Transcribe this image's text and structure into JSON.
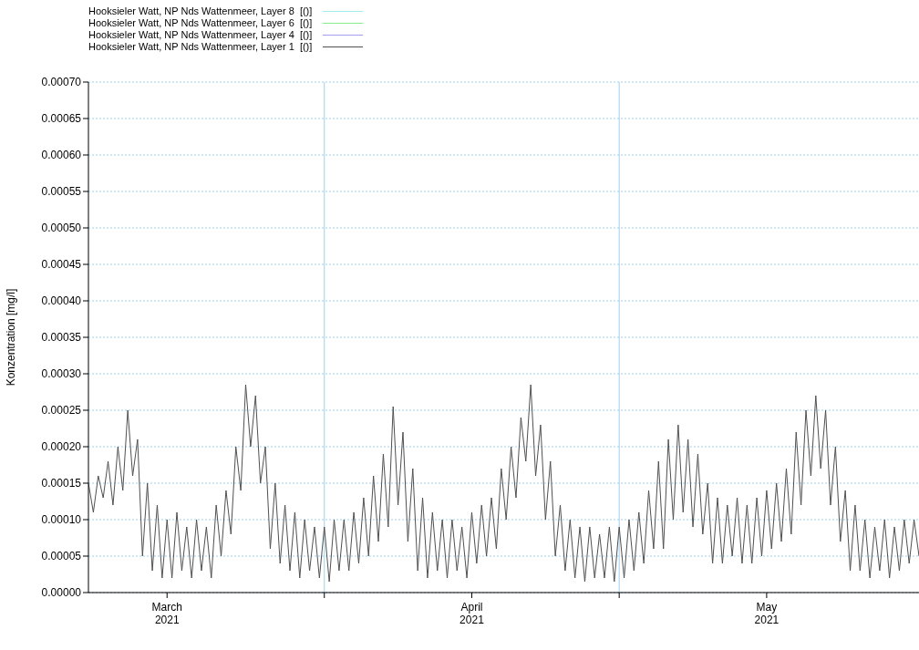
{
  "chart_data": {
    "type": "line",
    "ylabel": "Konzentration [mg/l]",
    "legend": "top left",
    "grid": true,
    "marker": "none",
    "xlim": [
      "2021-03-08",
      "2021-05-31T12:00"
    ],
    "xticks": [
      {
        "value": "2021-03-16",
        "label": "March\n2021"
      },
      {
        "value": "2021-04-01",
        "label": null
      },
      {
        "value": "2021-04-16",
        "label": "April\n2021"
      },
      {
        "value": "2021-05-01",
        "label": null
      },
      {
        "value": "2021-05-16",
        "label": "May\n2021"
      }
    ],
    "ylim": [
      0,
      0.0007
    ],
    "yticks": [
      {
        "value": 0,
        "label": "0.00000"
      },
      {
        "value": 5e-05,
        "label": "0.00005"
      },
      {
        "value": 0.0001,
        "label": "0.00010"
      },
      {
        "value": 0.00015,
        "label": "0.00015"
      },
      {
        "value": 0.0002,
        "label": "0.00020"
      },
      {
        "value": 0.00025,
        "label": "0.00025"
      },
      {
        "value": 0.0003,
        "label": "0.00030"
      },
      {
        "value": 0.00035,
        "label": "0.00035"
      },
      {
        "value": 0.0004,
        "label": "0.00040"
      },
      {
        "value": 0.00045,
        "label": "0.00045"
      },
      {
        "value": 0.0005,
        "label": "0.00050"
      },
      {
        "value": 0.00055,
        "label": "0.00055"
      },
      {
        "value": 0.0006,
        "label": "0.00060"
      },
      {
        "value": 0.00065,
        "label": "0.00065"
      },
      {
        "value": 0.0007,
        "label": "0.00070"
      }
    ],
    "x": [
      "2021-03-08T00:00",
      "2021-03-08T12:00",
      "2021-03-09T00:00",
      "2021-03-09T12:00",
      "2021-03-10T00:00",
      "2021-03-10T12:00",
      "2021-03-11T00:00",
      "2021-03-11T12:00",
      "2021-03-12T00:00",
      "2021-03-12T12:00",
      "2021-03-13T00:00",
      "2021-03-13T12:00",
      "2021-03-14T00:00",
      "2021-03-14T12:00",
      "2021-03-15T00:00",
      "2021-03-15T12:00",
      "2021-03-16T00:00",
      "2021-03-16T12:00",
      "2021-03-17T00:00",
      "2021-03-17T12:00",
      "2021-03-18T00:00",
      "2021-03-18T12:00",
      "2021-03-19T00:00",
      "2021-03-19T12:00",
      "2021-03-20T00:00",
      "2021-03-20T12:00",
      "2021-03-21T00:00",
      "2021-03-21T12:00",
      "2021-03-22T00:00",
      "2021-03-22T12:00",
      "2021-03-23T00:00",
      "2021-03-23T12:00",
      "2021-03-24T00:00",
      "2021-03-24T12:00",
      "2021-03-25T00:00",
      "2021-03-25T12:00",
      "2021-03-26T00:00",
      "2021-03-26T12:00",
      "2021-03-27T00:00",
      "2021-03-27T12:00",
      "2021-03-28T00:00",
      "2021-03-28T12:00",
      "2021-03-29T00:00",
      "2021-03-29T12:00",
      "2021-03-30T00:00",
      "2021-03-30T12:00",
      "2021-03-31T00:00",
      "2021-03-31T12:00",
      "2021-04-01T00:00",
      "2021-04-01T12:00",
      "2021-04-02T00:00",
      "2021-04-02T12:00",
      "2021-04-03T00:00",
      "2021-04-03T12:00",
      "2021-04-04T00:00",
      "2021-04-04T12:00",
      "2021-04-05T00:00",
      "2021-04-05T12:00",
      "2021-04-06T00:00",
      "2021-04-06T12:00",
      "2021-04-07T00:00",
      "2021-04-07T12:00",
      "2021-04-08T00:00",
      "2021-04-08T12:00",
      "2021-04-09T00:00",
      "2021-04-09T12:00",
      "2021-04-10T00:00",
      "2021-04-10T12:00",
      "2021-04-11T00:00",
      "2021-04-11T12:00",
      "2021-04-12T00:00",
      "2021-04-12T12:00",
      "2021-04-13T00:00",
      "2021-04-13T12:00",
      "2021-04-14T00:00",
      "2021-04-14T12:00",
      "2021-04-15T00:00",
      "2021-04-15T12:00",
      "2021-04-16T00:00",
      "2021-04-16T12:00",
      "2021-04-17T00:00",
      "2021-04-17T12:00",
      "2021-04-18T00:00",
      "2021-04-18T12:00",
      "2021-04-19T00:00",
      "2021-04-19T12:00",
      "2021-04-20T00:00",
      "2021-04-20T12:00",
      "2021-04-21T00:00",
      "2021-04-21T12:00",
      "2021-04-22T00:00",
      "2021-04-22T12:00",
      "2021-04-23T00:00",
      "2021-04-23T12:00",
      "2021-04-24T00:00",
      "2021-04-24T12:00",
      "2021-04-25T00:00",
      "2021-04-25T12:00",
      "2021-04-26T00:00",
      "2021-04-26T12:00",
      "2021-04-27T00:00",
      "2021-04-27T12:00",
      "2021-04-28T00:00",
      "2021-04-28T12:00",
      "2021-04-29T00:00",
      "2021-04-29T12:00",
      "2021-04-30T00:00",
      "2021-04-30T12:00",
      "2021-05-01T00:00",
      "2021-05-01T12:00",
      "2021-05-02T00:00",
      "2021-05-02T12:00",
      "2021-05-03T00:00",
      "2021-05-03T12:00",
      "2021-05-04T00:00",
      "2021-05-04T12:00",
      "2021-05-05T00:00",
      "2021-05-05T12:00",
      "2021-05-06T00:00",
      "2021-05-06T12:00",
      "2021-05-07T00:00",
      "2021-05-07T12:00",
      "2021-05-08T00:00",
      "2021-05-08T12:00",
      "2021-05-09T00:00",
      "2021-05-09T12:00",
      "2021-05-10T00:00",
      "2021-05-10T12:00",
      "2021-05-11T00:00",
      "2021-05-11T12:00",
      "2021-05-12T00:00",
      "2021-05-12T12:00",
      "2021-05-13T00:00",
      "2021-05-13T12:00",
      "2021-05-14T00:00",
      "2021-05-14T12:00",
      "2021-05-15T00:00",
      "2021-05-15T12:00",
      "2021-05-16T00:00",
      "2021-05-16T12:00",
      "2021-05-17T00:00",
      "2021-05-17T12:00",
      "2021-05-18T00:00",
      "2021-05-18T12:00",
      "2021-05-19T00:00",
      "2021-05-19T12:00",
      "2021-05-20T00:00",
      "2021-05-20T12:00",
      "2021-05-21T00:00",
      "2021-05-21T12:00",
      "2021-05-22T00:00",
      "2021-05-22T12:00",
      "2021-05-23T00:00",
      "2021-05-23T12:00",
      "2021-05-24T00:00",
      "2021-05-24T12:00",
      "2021-05-25T00:00",
      "2021-05-25T12:00",
      "2021-05-26T00:00",
      "2021-05-26T12:00",
      "2021-05-27T00:00",
      "2021-05-27T12:00",
      "2021-05-28T00:00",
      "2021-05-28T12:00",
      "2021-05-29T00:00",
      "2021-05-29T12:00",
      "2021-05-30T00:00",
      "2021-05-30T12:00",
      "2021-05-31T00:00",
      "2021-05-31T12:00"
    ],
    "series": [
      {
        "name": "Hooksieler Watt, NP Nds Wattenmeer, Layer 8  [()]",
        "color": "#a0eef0",
        "values": [
          null,
          null,
          null,
          null,
          null,
          null,
          null,
          null,
          null,
          null,
          null,
          null,
          null,
          null,
          null,
          null,
          null,
          null,
          null,
          null,
          null,
          null,
          null,
          null,
          null,
          null,
          null,
          null,
          null,
          null,
          null,
          null,
          null,
          null,
          null,
          null,
          null,
          null,
          null,
          null,
          null,
          null,
          null,
          null,
          null,
          null,
          null,
          null,
          null,
          null,
          null,
          null,
          null,
          null,
          null,
          null,
          null,
          null,
          null,
          null,
          null,
          null,
          null,
          null,
          null,
          null,
          null,
          null,
          null,
          null,
          null,
          null,
          null,
          null,
          null,
          null,
          null,
          null,
          null,
          null,
          null,
          null,
          null,
          null,
          null,
          null,
          null,
          null,
          null,
          null,
          null,
          null,
          null,
          null,
          null,
          null,
          null,
          null,
          null,
          null,
          null,
          null,
          null,
          null,
          null,
          null,
          null,
          null,
          null,
          null,
          null,
          null,
          null,
          null,
          null,
          null,
          null,
          null,
          null,
          null,
          null,
          null,
          null,
          null,
          null,
          null,
          null,
          null,
          null,
          null,
          null,
          null,
          null,
          null,
          null,
          null,
          null,
          null,
          null,
          null,
          null,
          null,
          null,
          null,
          null,
          null,
          null,
          null,
          null,
          null,
          null,
          null,
          null,
          null,
          null,
          null,
          null,
          null,
          null,
          null,
          null,
          null,
          null,
          null,
          null,
          null,
          null,
          null,
          null,
          null
        ]
      },
      {
        "name": "Hooksieler Watt, NP Nds Wattenmeer, Layer 6  [()]",
        "color": "#88ee88",
        "values": [
          null,
          null,
          null,
          null,
          null,
          null,
          null,
          null,
          null,
          null,
          null,
          null,
          null,
          null,
          null,
          null,
          null,
          null,
          null,
          null,
          null,
          null,
          null,
          null,
          null,
          null,
          null,
          null,
          null,
          null,
          null,
          null,
          null,
          null,
          null,
          null,
          null,
          null,
          null,
          null,
          null,
          null,
          null,
          null,
          null,
          null,
          null,
          null,
          null,
          null,
          null,
          null,
          null,
          null,
          null,
          null,
          null,
          null,
          null,
          null,
          null,
          null,
          null,
          null,
          null,
          null,
          null,
          null,
          null,
          null,
          null,
          null,
          null,
          null,
          null,
          null,
          null,
          null,
          null,
          null,
          null,
          null,
          null,
          null,
          null,
          null,
          null,
          null,
          null,
          null,
          null,
          null,
          null,
          null,
          null,
          null,
          null,
          null,
          null,
          null,
          null,
          null,
          null,
          null,
          null,
          null,
          null,
          null,
          null,
          null,
          null,
          null,
          null,
          null,
          null,
          null,
          null,
          null,
          null,
          null,
          null,
          null,
          null,
          null,
          null,
          null,
          null,
          null,
          null,
          null,
          null,
          null,
          null,
          null,
          null,
          null,
          null,
          null,
          null,
          null,
          null,
          null,
          null,
          null,
          null,
          null,
          null,
          null,
          null,
          null,
          null,
          null,
          null,
          null,
          null,
          null,
          null,
          null,
          null,
          null,
          null,
          null,
          null,
          null,
          null,
          null,
          null,
          null,
          null,
          null
        ]
      },
      {
        "name": "Hooksieler Watt, NP Nds Wattenmeer, Layer 4  [()]",
        "color": "#a0a0f0",
        "values": [
          null,
          null,
          null,
          null,
          null,
          null,
          null,
          null,
          null,
          null,
          null,
          null,
          null,
          null,
          null,
          null,
          null,
          null,
          null,
          null,
          null,
          null,
          null,
          null,
          null,
          null,
          null,
          null,
          null,
          null,
          null,
          null,
          null,
          null,
          null,
          null,
          null,
          null,
          null,
          null,
          null,
          null,
          null,
          null,
          null,
          null,
          null,
          null,
          null,
          null,
          null,
          null,
          null,
          null,
          null,
          null,
          null,
          null,
          null,
          null,
          null,
          null,
          null,
          null,
          null,
          null,
          null,
          null,
          null,
          null,
          null,
          null,
          null,
          null,
          null,
          null,
          null,
          null,
          null,
          null,
          null,
          null,
          null,
          null,
          null,
          null,
          null,
          null,
          null,
          null,
          null,
          null,
          null,
          null,
          null,
          null,
          null,
          null,
          null,
          null,
          null,
          null,
          null,
          null,
          null,
          null,
          null,
          null,
          null,
          null,
          null,
          null,
          null,
          null,
          null,
          null,
          null,
          null,
          null,
          null,
          null,
          null,
          null,
          null,
          null,
          null,
          null,
          null,
          null,
          null,
          null,
          null,
          null,
          null,
          null,
          null,
          null,
          null,
          null,
          null,
          null,
          null,
          null,
          null,
          null,
          null,
          null,
          null,
          null,
          null,
          null,
          null,
          null,
          null,
          null,
          null,
          null,
          null,
          null,
          null,
          null,
          null,
          null,
          null,
          null,
          null,
          null,
          null,
          null,
          null
        ]
      },
      {
        "name": "Hooksieler Watt, NP Nds Wattenmeer, Layer 1  [()]",
        "color": "#505050",
        "values": [
          0.00015,
          0.00011,
          0.00016,
          0.00013,
          0.00018,
          0.00012,
          0.0002,
          0.00014,
          0.00025,
          0.00016,
          0.00021,
          5e-05,
          0.00015,
          3e-05,
          0.00012,
          2e-05,
          0.0001,
          2e-05,
          0.00011,
          3e-05,
          9e-05,
          2e-05,
          0.0001,
          3e-05,
          9e-05,
          2e-05,
          0.00012,
          5e-05,
          0.00014,
          8e-05,
          0.0002,
          0.00014,
          0.000285,
          0.0002,
          0.00027,
          0.00015,
          0.0002,
          6e-05,
          0.00015,
          4e-05,
          0.00012,
          3e-05,
          0.00011,
          2e-05,
          0.0001,
          3e-05,
          9e-05,
          2e-05,
          9e-05,
          1.5e-05,
          0.0001,
          3e-05,
          0.0001,
          3e-05,
          0.00011,
          4e-05,
          0.00013,
          5e-05,
          0.00016,
          7e-05,
          0.00019,
          9e-05,
          0.000255,
          0.00012,
          0.00022,
          7e-05,
          0.00017,
          3e-05,
          0.00013,
          2e-05,
          0.00011,
          3e-05,
          0.0001,
          2e-05,
          0.0001,
          3e-05,
          9e-05,
          2e-05,
          0.00011,
          4e-05,
          0.00012,
          5e-05,
          0.00013,
          6e-05,
          0.00017,
          0.0001,
          0.0002,
          0.00013,
          0.00024,
          0.00018,
          0.000285,
          0.00016,
          0.00023,
          0.0001,
          0.00018,
          5e-05,
          0.00012,
          3e-05,
          0.0001,
          2e-05,
          9e-05,
          1.5e-05,
          9e-05,
          2e-05,
          8e-05,
          2e-05,
          9e-05,
          1.5e-05,
          9e-05,
          2e-05,
          0.0001,
          3e-05,
          0.00011,
          4e-05,
          0.00014,
          6e-05,
          0.00018,
          6e-05,
          0.00021,
          0.0001,
          0.00023,
          0.00011,
          0.00021,
          9e-05,
          0.00019,
          8e-05,
          0.00015,
          4e-05,
          0.00013,
          4e-05,
          0.00012,
          5e-05,
          0.00013,
          4e-05,
          0.00012,
          4e-05,
          0.00013,
          5e-05,
          0.00014,
          6e-05,
          0.00015,
          7e-05,
          0.00017,
          8e-05,
          0.00022,
          0.00012,
          0.00025,
          0.00016,
          0.00027,
          0.00017,
          0.00025,
          0.00012,
          0.0002,
          7e-05,
          0.00014,
          3e-05,
          0.00012,
          3e-05,
          0.0001,
          2e-05,
          9e-05,
          3e-05,
          0.0001,
          2e-05,
          9e-05,
          3e-05,
          0.0001,
          4e-05,
          0.0001,
          5e-05
        ]
      }
    ]
  }
}
